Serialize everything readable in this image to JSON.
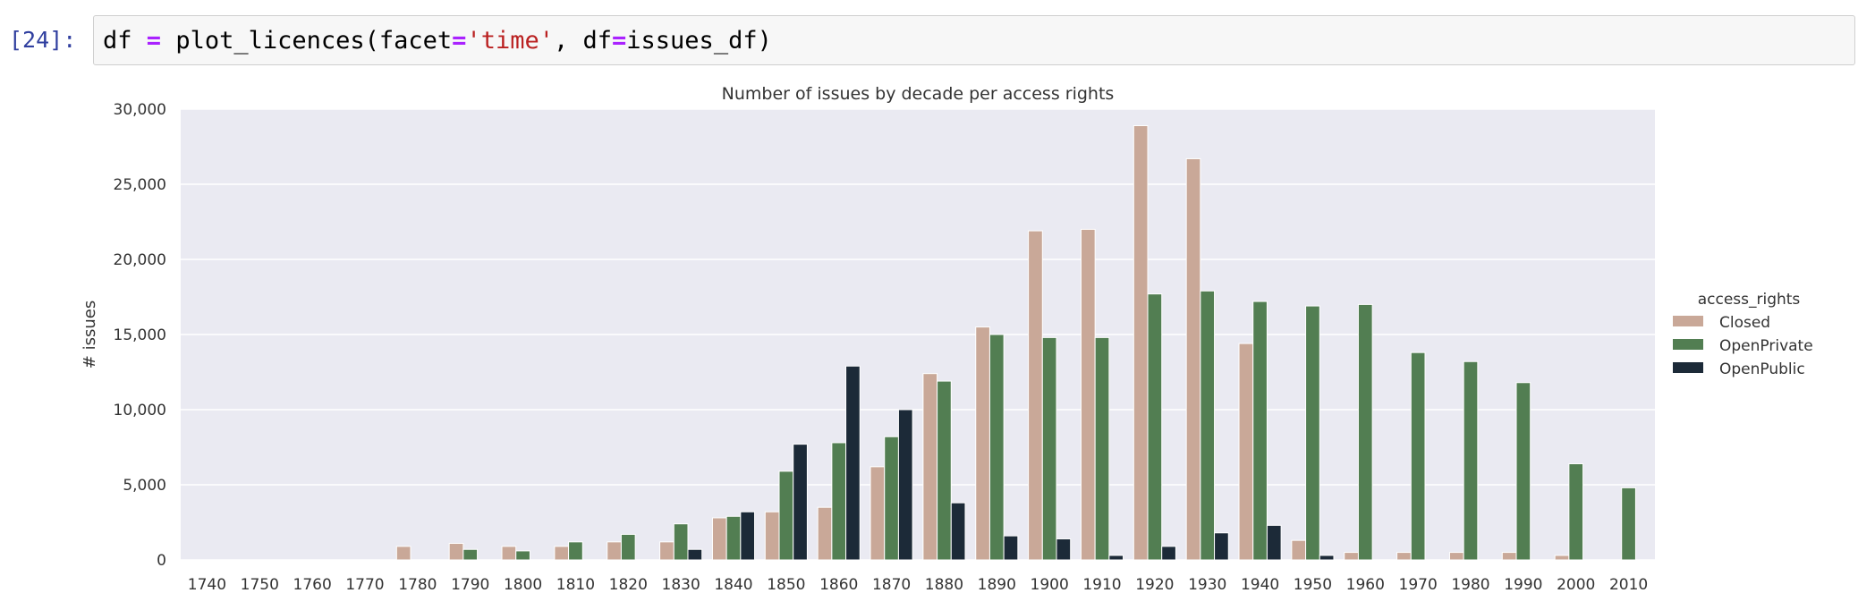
{
  "cell": {
    "prompt": "[24]:",
    "code": {
      "func": "plot_licences(facet",
      "eq1": "=",
      "arg_str": "'time'",
      "sep": ", df",
      "eq2": "=",
      "tail": "issues_df)",
      "var": "df"
    }
  },
  "chart_data": {
    "type": "bar",
    "title": "Number of issues by decade per access rights",
    "xlabel": "",
    "ylabel": "# issues",
    "ylim": [
      0,
      30000
    ],
    "yticks": [
      0,
      5000,
      10000,
      15000,
      20000,
      25000,
      30000
    ],
    "ytick_labels": [
      "0",
      "5,000",
      "10,000",
      "15,000",
      "20,000",
      "25,000",
      "30,000"
    ],
    "grid": true,
    "legend_title": "access_rights",
    "legend_position": "right",
    "categories": [
      "1740",
      "1750",
      "1760",
      "1770",
      "1780",
      "1790",
      "1800",
      "1810",
      "1820",
      "1830",
      "1840",
      "1850",
      "1860",
      "1870",
      "1880",
      "1890",
      "1900",
      "1910",
      "1920",
      "1930",
      "1940",
      "1950",
      "1960",
      "1970",
      "1980",
      "1990",
      "2000",
      "2010"
    ],
    "series": [
      {
        "name": "Closed",
        "color": "#c9a898",
        "values": [
          0,
          0,
          0,
          0,
          900,
          1100,
          900,
          900,
          1200,
          1200,
          2800,
          3200,
          3500,
          6200,
          12400,
          15500,
          21900,
          22000,
          28900,
          26700,
          14400,
          1300,
          500,
          500,
          500,
          500,
          300,
          0
        ]
      },
      {
        "name": "OpenPrivate",
        "color": "#527e52",
        "values": [
          0,
          0,
          0,
          0,
          0,
          700,
          600,
          1200,
          1700,
          2400,
          2900,
          5900,
          7800,
          8200,
          11900,
          15000,
          14800,
          14800,
          17700,
          17900,
          17200,
          16900,
          17000,
          13800,
          13200,
          11800,
          6400,
          4800
        ]
      },
      {
        "name": "OpenPublic",
        "color": "#1c2a38",
        "values": [
          0,
          0,
          0,
          0,
          0,
          0,
          0,
          0,
          0,
          700,
          3200,
          7700,
          12900,
          10000,
          3800,
          1600,
          1400,
          300,
          900,
          1800,
          2300,
          300,
          0,
          0,
          0,
          0,
          0,
          0
        ]
      }
    ]
  }
}
